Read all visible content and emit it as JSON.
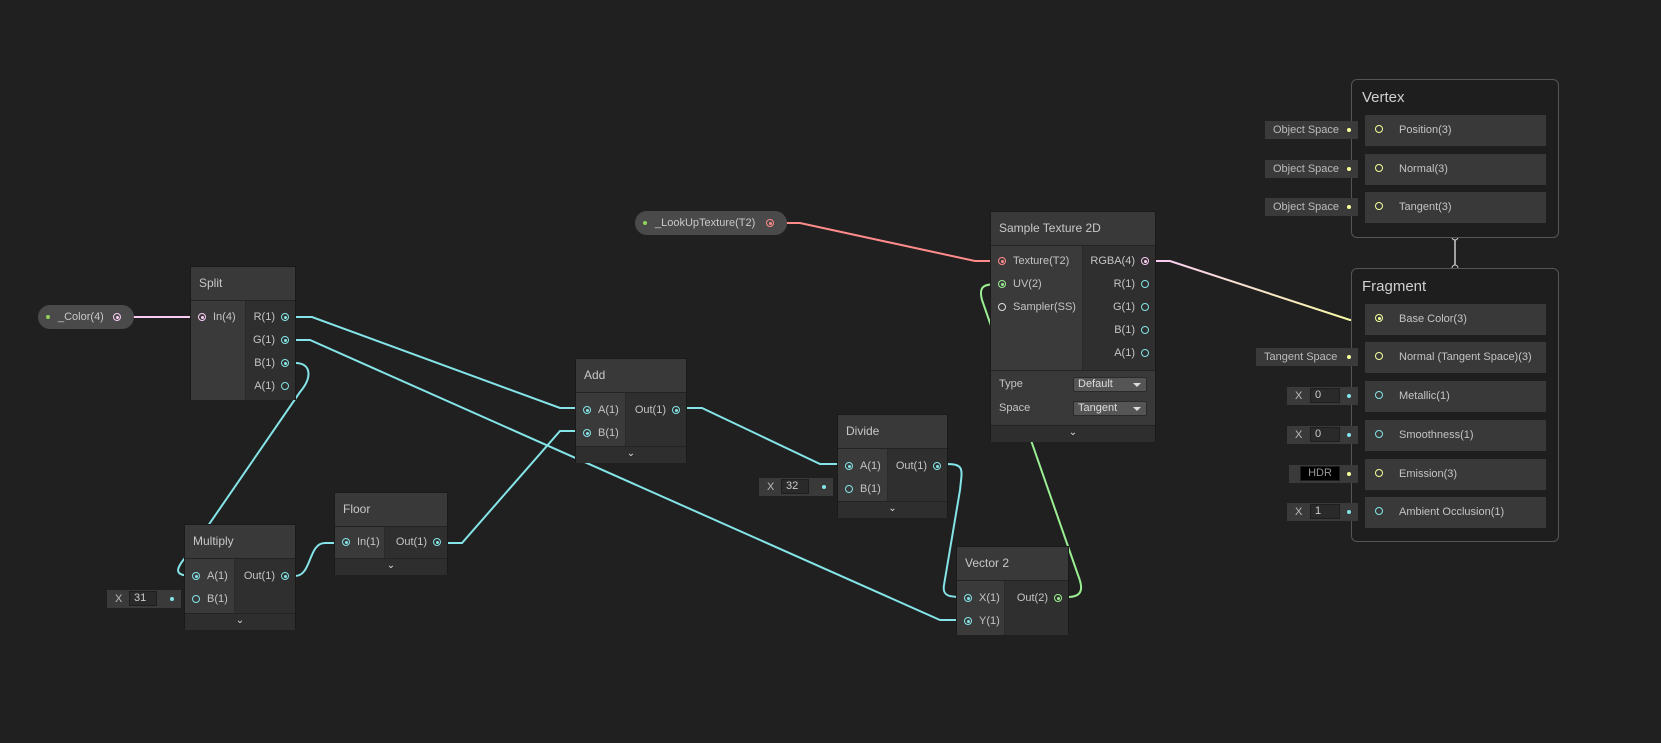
{
  "colors": {
    "background": "#202020",
    "float": "#84e4e7",
    "vector4": "#fbcbf4",
    "vector3": "#f6ff9a",
    "vector2": "#9aef92",
    "texture": "#ff8b8b",
    "sampler": "#dddddd"
  },
  "properties": {
    "color": "_Color(4)",
    "lookup": "_LookUpTexture(T2)"
  },
  "split": {
    "title": "Split",
    "in": "In(4)",
    "outs": [
      "R(1)",
      "G(1)",
      "B(1)",
      "A(1)"
    ]
  },
  "add": {
    "title": "Add",
    "ins": [
      "A(1)",
      "B(1)"
    ],
    "out": "Out(1)"
  },
  "divide": {
    "title": "Divide",
    "ins": [
      "A(1)",
      "B(1)"
    ],
    "out": "Out(1)",
    "b_label": "X",
    "b_value": "32"
  },
  "floor": {
    "title": "Floor",
    "in": "In(1)",
    "out": "Out(1)"
  },
  "multiply": {
    "title": "Multiply",
    "ins": [
      "A(1)",
      "B(1)"
    ],
    "out": "Out(1)",
    "b_label": "X",
    "b_value": "31"
  },
  "vector2": {
    "title": "Vector 2",
    "ins": [
      "X(1)",
      "Y(1)"
    ],
    "out": "Out(2)"
  },
  "sample": {
    "title": "Sample Texture 2D",
    "ins": [
      "Texture(T2)",
      "UV(2)",
      "Sampler(SS)"
    ],
    "outs": [
      "RGBA(4)",
      "R(1)",
      "G(1)",
      "B(1)",
      "A(1)"
    ],
    "type_label": "Type",
    "type_value": "Default",
    "space_label": "Space",
    "space_value": "Tangent"
  },
  "vertex": {
    "title": "Vertex",
    "blocks": [
      {
        "label": "Position(3)",
        "input": "Object Space"
      },
      {
        "label": "Normal(3)",
        "input": "Object Space"
      },
      {
        "label": "Tangent(3)",
        "input": "Object Space"
      }
    ]
  },
  "fragment": {
    "title": "Fragment",
    "blocks": [
      {
        "label": "Base Color(3)"
      },
      {
        "label": "Normal (Tangent Space)(3)",
        "input": "Tangent Space"
      },
      {
        "label": "Metallic(1)",
        "x_label": "X",
        "value": "0"
      },
      {
        "label": "Smoothness(1)",
        "x_label": "X",
        "value": "0"
      },
      {
        "label": "Emission(3)",
        "input": "HDR"
      },
      {
        "label": "Ambient Occlusion(1)",
        "x_label": "X",
        "value": "1"
      }
    ]
  },
  "icons": {
    "collapse": "chevron-down-icon"
  }
}
